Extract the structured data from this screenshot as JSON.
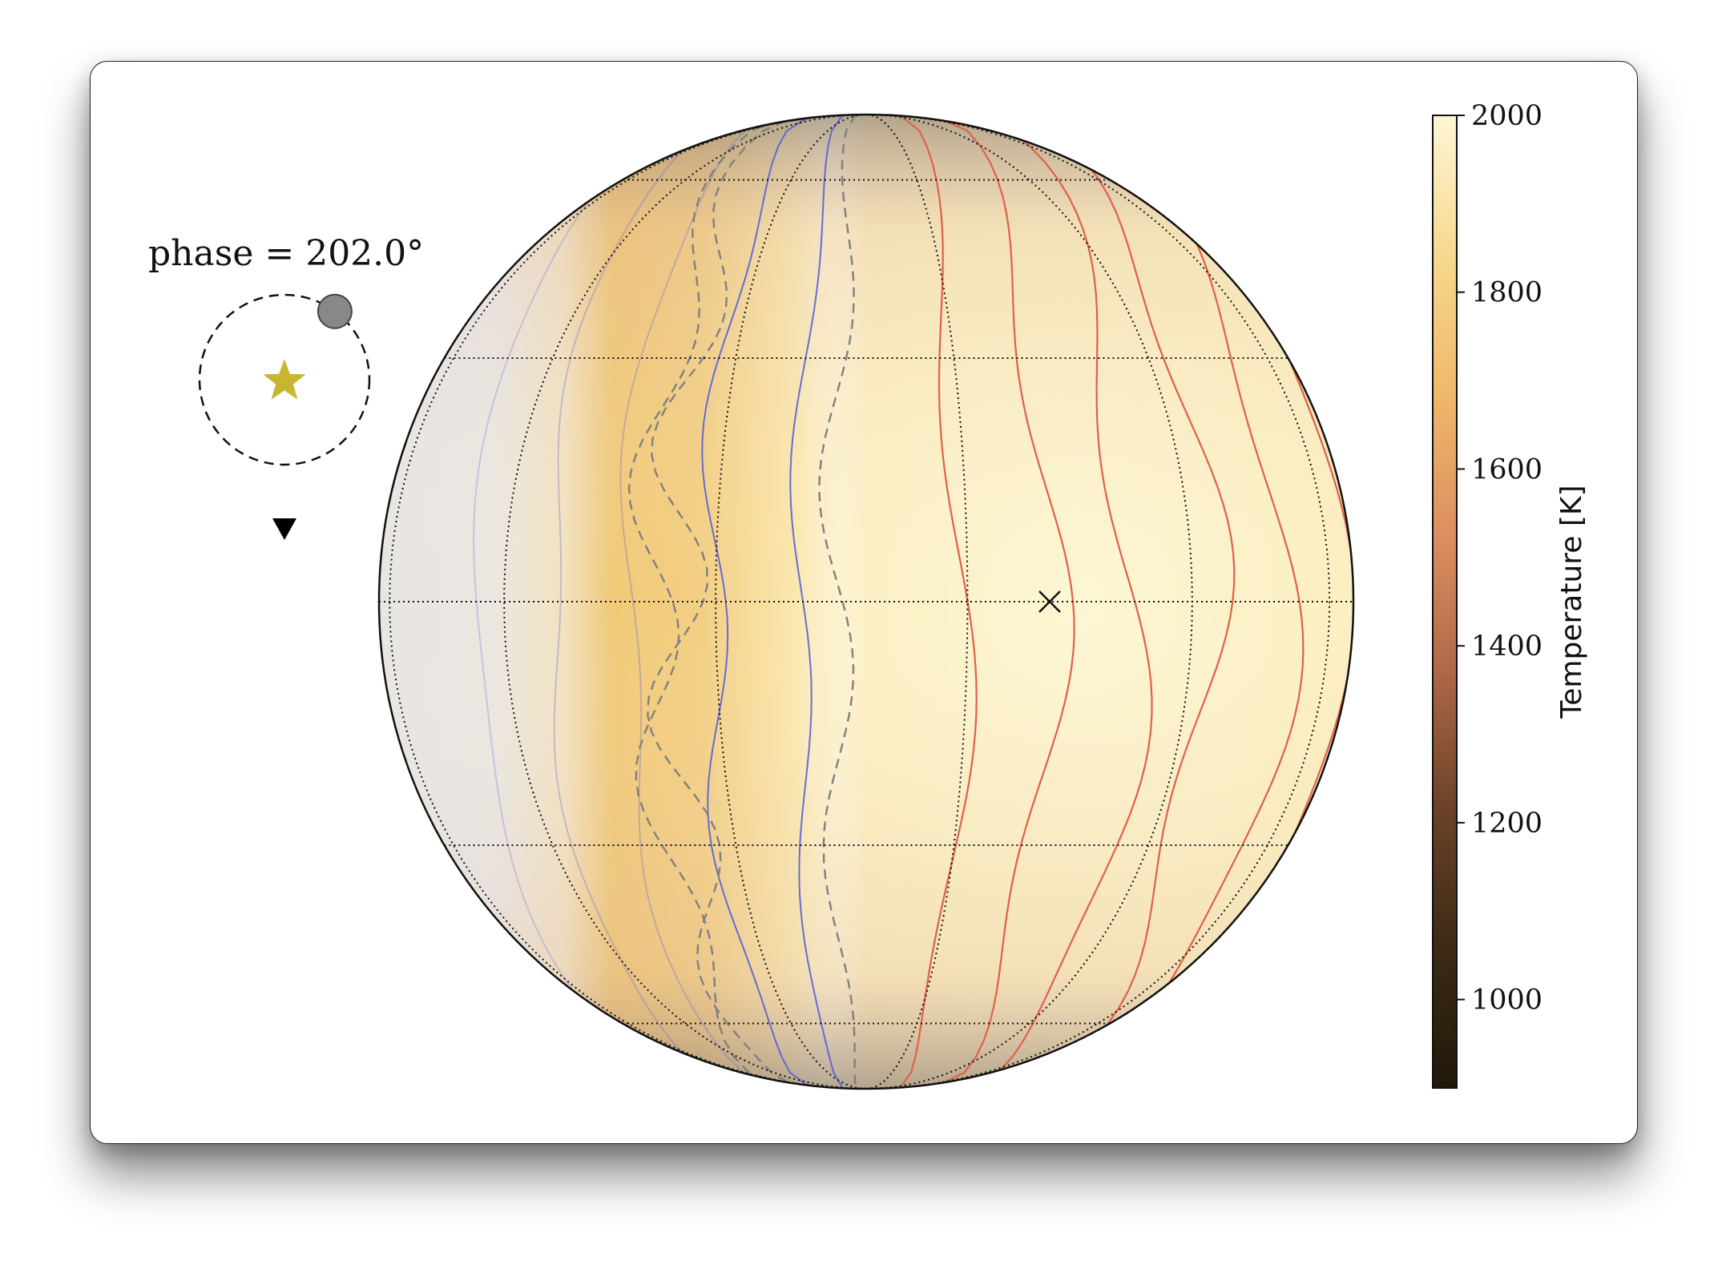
{
  "chart_data": {
    "type": "heatmap",
    "title": "",
    "phase_label": "phase = 202.0°",
    "phase_deg": 202.0,
    "projection": "orthographic",
    "colorbar": {
      "label": "Temperature [K]",
      "range": [
        900,
        2000
      ],
      "ticks": [
        1000,
        1200,
        1400,
        1600,
        1800,
        2000
      ],
      "tick_labels": [
        "1000",
        "1200",
        "1400",
        "1600",
        "1800",
        "2000"
      ],
      "colormap_stops": [
        "#201808",
        "#3c2a16",
        "#6b4228",
        "#b06848",
        "#dc8f60",
        "#f0b86a",
        "#f7d98e",
        "#fdf6d6"
      ]
    },
    "graticule": {
      "latitudes": [
        -60,
        -30,
        0,
        30,
        60
      ],
      "longitudes": [
        -90,
        -60,
        -30,
        0,
        30,
        60,
        90
      ]
    },
    "contours": {
      "hot_color": "#e0604a",
      "cold_color": "#5560d8",
      "dashed_color": "#808080"
    },
    "markers": {
      "substellar": "x-marker",
      "star": "star-icon",
      "planet": "planet-icon",
      "observer": "observer-triangle-icon"
    },
    "colors": {
      "star": "#c8b632",
      "planet": "#888888",
      "outline": "#111111"
    }
  }
}
